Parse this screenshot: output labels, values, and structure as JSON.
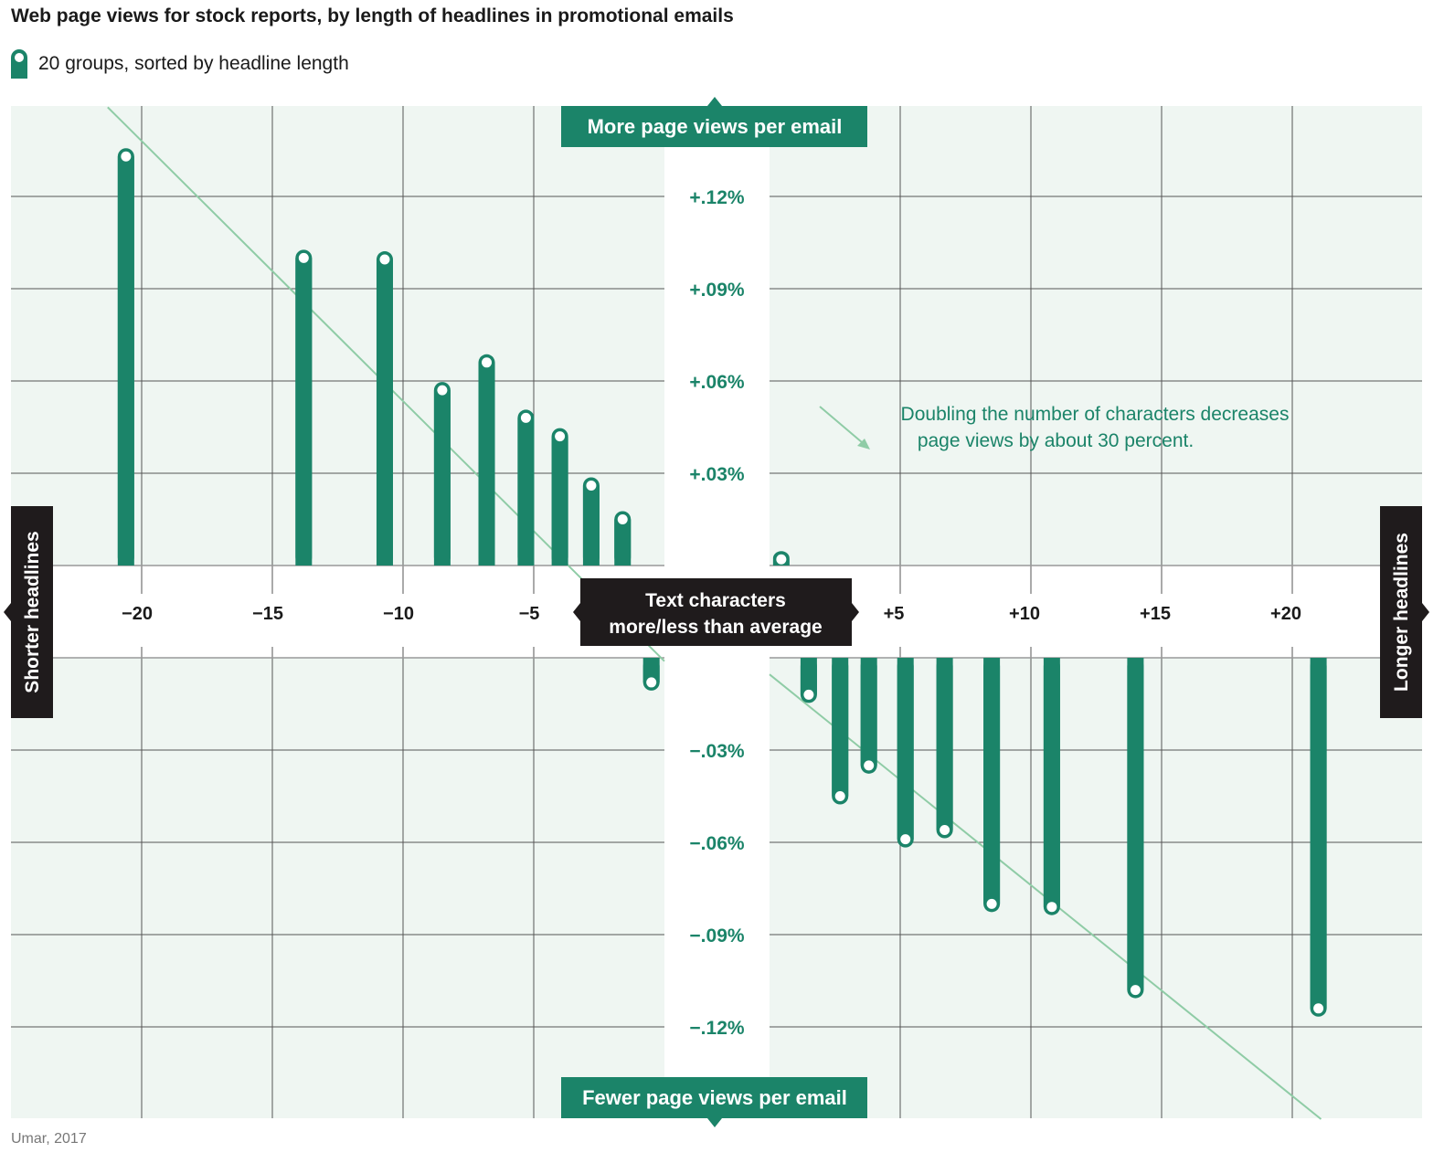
{
  "title": "Web page views for stock reports, by length of headlines in promotional emails",
  "legend_label": "20 groups, sorted by headline length",
  "source": "Umar, 2017",
  "colors": {
    "bar": "#1b8469",
    "panel": "#eff6f2",
    "trend": "#8fcca6",
    "grid": "#555555",
    "dark": "#1f1b1c"
  },
  "chart_data": {
    "type": "bar",
    "title": "Web page views for stock reports, by length of headlines in promotional emails",
    "xlabel": "Text characters more/less than average",
    "ylabel_top": "More page views per email",
    "ylabel_bottom": "Fewer page views per email",
    "x_left_label": "Shorter headlines",
    "x_right_label": "Longer headlines",
    "annotation": [
      "Doubling the number of characters decreases",
      "page views by about 30 percent."
    ],
    "x_ticks": [
      -20,
      -15,
      -10,
      -5,
      5,
      10,
      15,
      20
    ],
    "x_tick_labels": [
      "−20",
      "−15",
      "−10",
      "−5",
      "+5",
      "+10",
      "+15",
      "+20"
    ],
    "y_ticks": [
      0.12,
      0.09,
      0.06,
      0.03,
      -0.03,
      -0.06,
      -0.09,
      -0.12
    ],
    "y_tick_labels": [
      "+.12%",
      "+.09%",
      "+.06%",
      "+.03%",
      "−.03%",
      "−.06%",
      "−.09%",
      "−.12%"
    ],
    "xlim": [
      -25,
      25
    ],
    "ylim": [
      -0.15,
      0.15
    ],
    "points": [
      {
        "x": -20.6,
        "y": 0.133
      },
      {
        "x": -13.8,
        "y": 0.1
      },
      {
        "x": -10.7,
        "y": 0.0995
      },
      {
        "x": -8.5,
        "y": 0.057
      },
      {
        "x": -6.8,
        "y": 0.066
      },
      {
        "x": -5.3,
        "y": 0.048
      },
      {
        "x": -4.0,
        "y": 0.042
      },
      {
        "x": -2.8,
        "y": 0.026
      },
      {
        "x": -1.6,
        "y": 0.015
      },
      {
        "x": -0.5,
        "y": -0.008
      },
      {
        "x": 0.45,
        "y": 0.002
      },
      {
        "x": 1.5,
        "y": -0.012
      },
      {
        "x": 2.7,
        "y": -0.045
      },
      {
        "x": 3.8,
        "y": -0.035
      },
      {
        "x": 5.2,
        "y": -0.059
      },
      {
        "x": 6.7,
        "y": -0.056
      },
      {
        "x": 8.5,
        "y": -0.08
      },
      {
        "x": 10.8,
        "y": -0.081
      },
      {
        "x": 14.0,
        "y": -0.108
      },
      {
        "x": 21.0,
        "y": -0.114
      }
    ],
    "trend": [
      {
        "x": -21.3,
        "y": 0.149
      },
      {
        "x": 21.1,
        "y": -0.15
      }
    ]
  }
}
